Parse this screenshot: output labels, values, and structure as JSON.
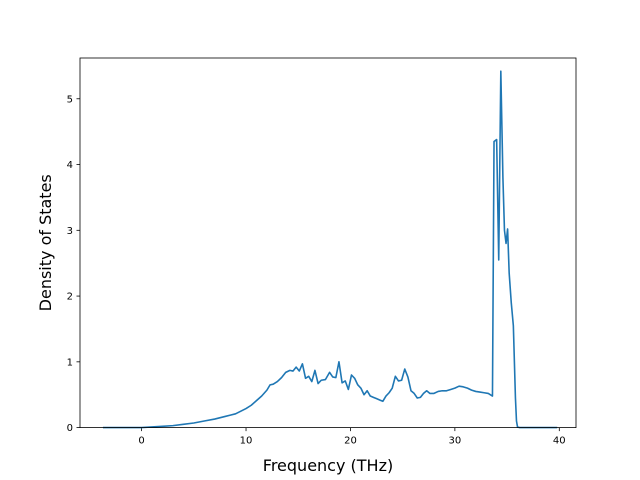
{
  "chart_data": {
    "type": "line",
    "title": "",
    "xlabel": "Frequency (THz)",
    "ylabel": "Density of States",
    "xlim": [
      -5.9,
      41.6
    ],
    "ylim": [
      0,
      5.62
    ],
    "xticks": [
      0,
      10,
      20,
      30,
      40
    ],
    "yticks": [
      0,
      1,
      2,
      3,
      4,
      5
    ],
    "grid": false,
    "line_color": "#1f77b4",
    "series": [
      {
        "x": [
          -3.7,
          -2,
          0,
          1,
          2,
          3,
          4,
          5,
          6,
          7,
          8,
          8.5,
          9,
          9.5,
          10,
          10.5,
          11,
          11.5,
          12,
          12.3,
          12.6,
          13,
          13.4,
          13.8,
          14.2,
          14.5,
          14.8,
          15.1,
          15.4,
          15.7,
          16,
          16.3,
          16.6,
          16.9,
          17.2,
          17.6,
          18,
          18.3,
          18.6,
          18.9,
          19.2,
          19.5,
          19.8,
          20.1,
          20.4,
          20.7,
          21,
          21.3,
          21.6,
          21.9,
          22.2,
          22.5,
          22.8,
          23.1,
          23.4,
          23.7,
          24,
          24.3,
          24.6,
          24.9,
          25.2,
          25.5,
          25.8,
          26.1,
          26.4,
          26.7,
          27,
          27.3,
          27.6,
          28,
          28.4,
          28.8,
          29.2,
          29.6,
          30,
          30.4,
          30.8,
          31.2,
          31.6,
          32,
          32.4,
          32.8,
          33.2,
          33.6,
          33.75,
          34.0,
          34.2,
          34.4,
          34.6,
          34.75,
          34.9,
          35.05,
          35.2,
          35.4,
          35.6,
          35.8,
          35.9,
          36.0,
          36.2,
          36.5,
          38,
          39.8
        ],
        "y": [
          0,
          0,
          0,
          0.01,
          0.02,
          0.03,
          0.05,
          0.07,
          0.1,
          0.13,
          0.17,
          0.19,
          0.21,
          0.25,
          0.29,
          0.34,
          0.41,
          0.48,
          0.57,
          0.65,
          0.66,
          0.7,
          0.76,
          0.84,
          0.87,
          0.86,
          0.92,
          0.86,
          0.97,
          0.75,
          0.78,
          0.7,
          0.87,
          0.67,
          0.72,
          0.73,
          0.84,
          0.77,
          0.76,
          1.0,
          0.68,
          0.71,
          0.58,
          0.8,
          0.75,
          0.65,
          0.6,
          0.5,
          0.56,
          0.48,
          0.46,
          0.44,
          0.42,
          0.4,
          0.48,
          0.53,
          0.6,
          0.78,
          0.71,
          0.72,
          0.89,
          0.77,
          0.56,
          0.52,
          0.45,
          0.46,
          0.52,
          0.56,
          0.52,
          0.52,
          0.55,
          0.56,
          0.56,
          0.58,
          0.6,
          0.63,
          0.62,
          0.6,
          0.57,
          0.55,
          0.54,
          0.53,
          0.52,
          0.48,
          4.35,
          4.38,
          2.55,
          5.42,
          3.8,
          3.0,
          2.8,
          3.02,
          2.35,
          1.9,
          1.55,
          0.45,
          0.1,
          0.01,
          0,
          0,
          0,
          0
        ]
      }
    ]
  }
}
